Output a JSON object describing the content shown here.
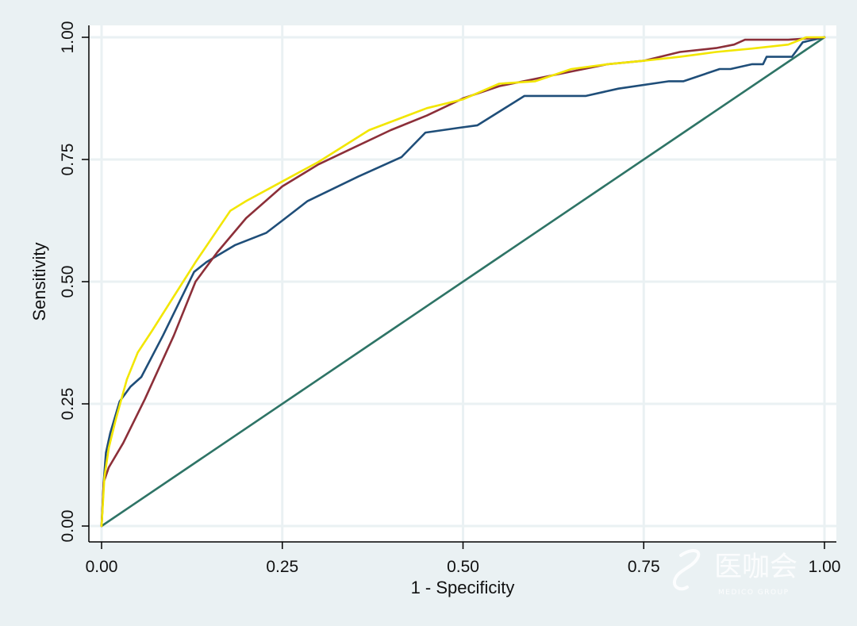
{
  "chart_data": {
    "type": "line",
    "xlabel": "1 - Specificity",
    "ylabel": "Sensitivity",
    "xlim": [
      0,
      1
    ],
    "ylim": [
      0,
      1
    ],
    "x_ticks": [
      0,
      0.25,
      0.5,
      0.75,
      1
    ],
    "y_ticks": [
      0,
      0.25,
      0.5,
      0.75,
      1
    ],
    "x_tick_labels": [
      "0.00",
      "0.25",
      "0.50",
      "0.75",
      "1.00"
    ],
    "y_tick_labels": [
      "0.00",
      "0.25",
      "0.50",
      "0.75",
      "1.00"
    ],
    "grid": true,
    "series": [
      {
        "color": "#1f4e79",
        "x": [
          0,
          0.003,
          0.006,
          0.012,
          0.025,
          0.04,
          0.055,
          0.085,
          0.128,
          0.145,
          0.185,
          0.228,
          0.25,
          0.285,
          0.355,
          0.415,
          0.448,
          0.495,
          0.52,
          0.585,
          0.67,
          0.715,
          0.785,
          0.805,
          0.855,
          0.87,
          0.9,
          0.915,
          0.92,
          0.945,
          0.955,
          0.97,
          1
        ],
        "y": [
          0,
          0.09,
          0.15,
          0.19,
          0.255,
          0.285,
          0.305,
          0.39,
          0.52,
          0.54,
          0.575,
          0.6,
          0.625,
          0.665,
          0.715,
          0.755,
          0.805,
          0.815,
          0.82,
          0.88,
          0.88,
          0.895,
          0.91,
          0.91,
          0.935,
          0.935,
          0.945,
          0.945,
          0.96,
          0.96,
          0.96,
          0.99,
          1
        ]
      },
      {
        "color": "#8c2f39",
        "x": [
          0,
          0.003,
          0.01,
          0.03,
          0.06,
          0.1,
          0.13,
          0.16,
          0.2,
          0.25,
          0.3,
          0.35,
          0.4,
          0.45,
          0.5,
          0.55,
          0.6,
          0.65,
          0.7,
          0.75,
          0.8,
          0.85,
          0.875,
          0.89,
          0.92,
          0.95,
          1
        ],
        "y": [
          0,
          0.09,
          0.12,
          0.17,
          0.26,
          0.39,
          0.5,
          0.56,
          0.63,
          0.695,
          0.74,
          0.775,
          0.81,
          0.84,
          0.875,
          0.9,
          0.915,
          0.93,
          0.945,
          0.952,
          0.97,
          0.978,
          0.985,
          0.995,
          0.995,
          0.995,
          1
        ]
      },
      {
        "color": "#f2e600",
        "x": [
          0,
          0.004,
          0.01,
          0.02,
          0.035,
          0.05,
          0.07,
          0.1,
          0.13,
          0.178,
          0.2,
          0.25,
          0.3,
          0.37,
          0.45,
          0.5,
          0.55,
          0.6,
          0.65,
          0.7,
          0.75,
          0.8,
          0.85,
          0.9,
          0.95,
          0.975,
          1
        ],
        "y": [
          0,
          0.1,
          0.16,
          0.22,
          0.3,
          0.355,
          0.4,
          0.47,
          0.54,
          0.645,
          0.665,
          0.705,
          0.745,
          0.81,
          0.855,
          0.873,
          0.905,
          0.91,
          0.935,
          0.945,
          0.952,
          0.96,
          0.97,
          0.977,
          0.985,
          1,
          1
        ]
      },
      {
        "color": "#2e7466",
        "x": [
          0,
          1
        ],
        "y": [
          0,
          1
        ]
      }
    ]
  },
  "watermark": {
    "text": "医咖会",
    "subtext": "MEDICO GROUP"
  },
  "colors": {
    "background": "#eaf1f3",
    "plot_background": "#ffffff",
    "grid": "#eaf1f3"
  }
}
